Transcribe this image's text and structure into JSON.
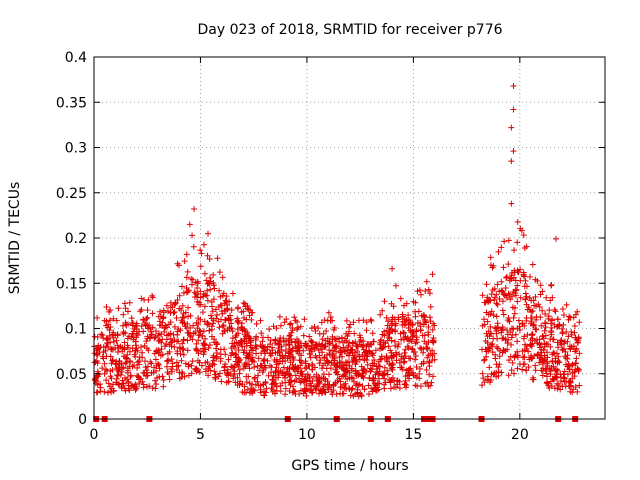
{
  "chart_data": {
    "type": "scatter",
    "title": "Day 023 of 2018, SRMTID for receiver p776",
    "xlabel": "GPS time / hours",
    "ylabel": "SRMTID / TECUs",
    "xlim": [
      0,
      24
    ],
    "ylim": [
      0,
      0.4
    ],
    "grid": true,
    "xticks": [
      0,
      5,
      10,
      15,
      20
    ],
    "xtick_labels": [
      "0",
      "5",
      "10",
      "15",
      "20"
    ],
    "yticks": [
      0,
      0.05,
      0.1,
      0.15,
      0.2,
      0.25,
      0.3,
      0.35,
      0.4
    ],
    "ytick_labels": [
      "0",
      "0.05",
      "0.1",
      "0.15",
      "0.2",
      "0.25",
      "0.3",
      "0.35",
      "0.4"
    ],
    "marker": "+",
    "color": "#e00000",
    "density_profile": [
      {
        "x": 0.0,
        "y": 0.06
      },
      {
        "x": 1.0,
        "y": 0.065
      },
      {
        "x": 2.0,
        "y": 0.07
      },
      {
        "x": 3.0,
        "y": 0.075
      },
      {
        "x": 4.0,
        "y": 0.09
      },
      {
        "x": 5.0,
        "y": 0.11
      },
      {
        "x": 6.0,
        "y": 0.09
      },
      {
        "x": 7.0,
        "y": 0.065
      },
      {
        "x": 8.0,
        "y": 0.055
      },
      {
        "x": 9.0,
        "y": 0.06
      },
      {
        "x": 10.0,
        "y": 0.055
      },
      {
        "x": 11.0,
        "y": 0.06
      },
      {
        "x": 12.0,
        "y": 0.055
      },
      {
        "x": 13.0,
        "y": 0.055
      },
      {
        "x": 14.0,
        "y": 0.075
      },
      {
        "x": 15.0,
        "y": 0.07
      },
      {
        "x": 16.0,
        "y": 0.08
      },
      {
        "x": 18.2,
        "y": 0.08
      },
      {
        "x": 19.0,
        "y": 0.1
      },
      {
        "x": 20.0,
        "y": 0.11
      },
      {
        "x": 21.0,
        "y": 0.08
      },
      {
        "x": 22.0,
        "y": 0.07
      },
      {
        "x": 22.7,
        "y": 0.06
      }
    ],
    "coverage_intervals": [
      [
        0.0,
        16.0
      ],
      [
        18.2,
        22.8
      ]
    ],
    "notable_points": [
      {
        "x": 4.7,
        "y": 0.232
      },
      {
        "x": 4.5,
        "y": 0.215
      },
      {
        "x": 19.7,
        "y": 0.368
      },
      {
        "x": 19.7,
        "y": 0.342
      },
      {
        "x": 19.6,
        "y": 0.322
      },
      {
        "x": 19.7,
        "y": 0.296
      },
      {
        "x": 19.6,
        "y": 0.285
      },
      {
        "x": 19.6,
        "y": 0.238
      },
      {
        "x": 21.7,
        "y": 0.199
      },
      {
        "x": 14.0,
        "y": 0.166
      },
      {
        "x": 15.9,
        "y": 0.16
      }
    ],
    "zero_markers_x": [
      0.1,
      0.5,
      2.6,
      9.1,
      11.4,
      13.0,
      13.8,
      15.5,
      15.7,
      15.9,
      18.2,
      21.8,
      22.6
    ]
  }
}
